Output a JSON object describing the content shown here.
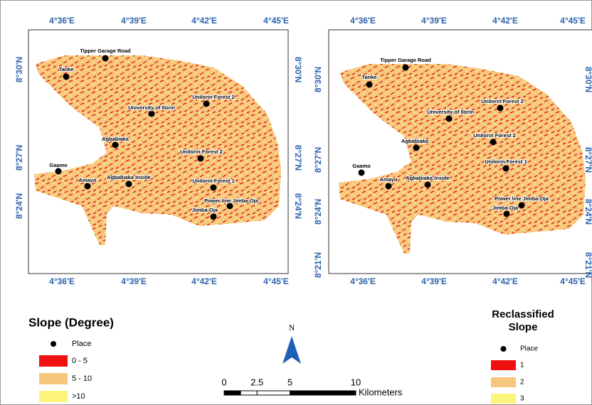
{
  "maps": [
    {
      "top_labels": [
        "4°36'E",
        "4°39'E",
        "4°42'E",
        "4°45'E"
      ],
      "bottom_labels": [
        "4°36'E",
        "4°39'E",
        "4°42'E",
        "4°45'E"
      ],
      "left_labels": [
        "8°30'N",
        "8°27'N",
        "8°24'N"
      ],
      "right_labels": [
        "8°30'N",
        "8°27'N",
        "8°24'N"
      ],
      "places": [
        "Tipper Garage Road",
        "Tanke",
        "University of Ilorin",
        "Unilorin Forest 2",
        "Unilorin Forest 2",
        "Agbabiaka",
        "Agbabiaka Inside",
        "Unilorin Forest 1",
        "Gaamo",
        "Amayo",
        "Power line Jimba-Oja",
        "Jimba-Oja"
      ]
    },
    {
      "top_labels": [
        "4°36'E",
        "4°39'E",
        "4°42'E",
        "4°45'E"
      ],
      "bottom_labels": [
        "4°36'E",
        "4°39'E",
        "4°42'E",
        "4°45'E"
      ],
      "left_labels": [
        "8°30'N",
        "8°27'N",
        "8°24'N",
        "8°21'N"
      ],
      "right_labels": [
        "8°30'N",
        "8°27'N",
        "8°24'N",
        "8°21'N"
      ],
      "places": [
        "Tipper Garage Road",
        "Tanke",
        "Unilorin Forest 2",
        "University of Ilorin",
        "Unilorin Forest 2",
        "Agbabiaka",
        "Agbabiaka Inside",
        "Unilorin Forest 1",
        "Gaamo",
        "Amayo",
        "Power line Jimba-Oja",
        "Jimba-Oja"
      ]
    }
  ],
  "legend_left": {
    "title": "Slope (Degree)",
    "items": [
      "Place",
      "0 - 5",
      "5 - 10",
      ">10"
    ]
  },
  "north": "N",
  "scale": {
    "ticks": [
      0,
      2.5,
      5,
      10
    ],
    "unit": "Kilometers"
  },
  "legend_right": {
    "title": "Reclassified Slope",
    "items": [
      "Place",
      "1",
      "2",
      "3"
    ]
  }
}
